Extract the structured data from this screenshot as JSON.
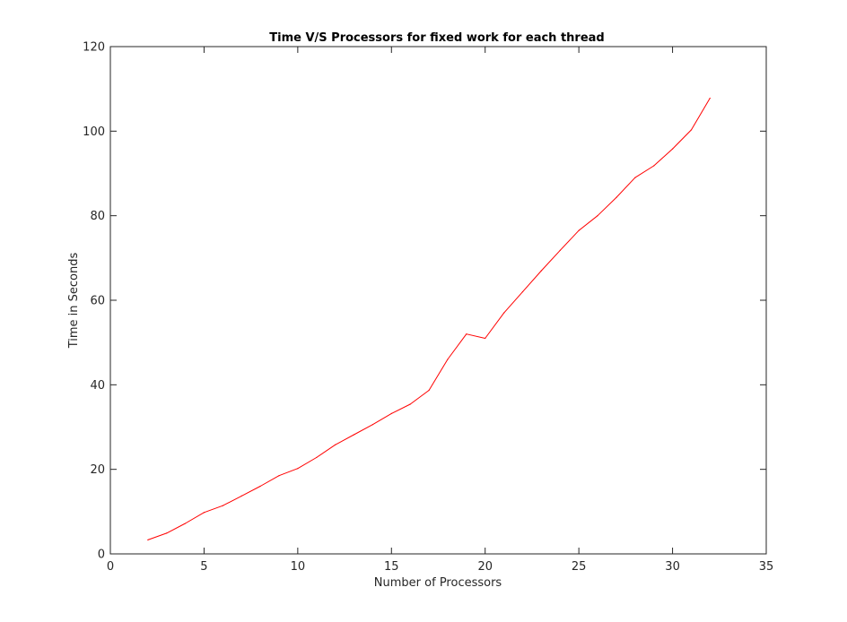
{
  "chart_data": {
    "type": "line",
    "title": "Time V/S Processors for fixed work for each thread",
    "xlabel": "Number of Processors",
    "ylabel": "Time in Seconds",
    "xlim": [
      0,
      35
    ],
    "ylim": [
      0,
      120
    ],
    "xticks": [
      0,
      5,
      10,
      15,
      20,
      25,
      30,
      35
    ],
    "yticks": [
      0,
      20,
      40,
      60,
      80,
      100,
      120
    ],
    "grid": false,
    "series": [
      {
        "name": "time",
        "color": "#ff0000",
        "x": [
          2,
          3,
          4,
          5,
          6,
          7,
          8,
          9,
          10,
          11,
          12,
          13,
          14,
          15,
          16,
          17,
          18,
          19,
          20,
          21,
          22,
          23,
          24,
          25,
          26,
          27,
          28,
          29,
          30,
          31,
          32
        ],
        "values": [
          3.3,
          4.9,
          7.2,
          9.8,
          11.4,
          13.7,
          16.0,
          18.5,
          20.2,
          22.8,
          25.8,
          28.2,
          30.6,
          33.2,
          35.4,
          38.7,
          46.0,
          52.0,
          51.0,
          57.0,
          62.0,
          67.0,
          71.8,
          76.5,
          80.0,
          84.3,
          89.0,
          91.8,
          95.8,
          100.3,
          107.8
        ]
      }
    ]
  }
}
